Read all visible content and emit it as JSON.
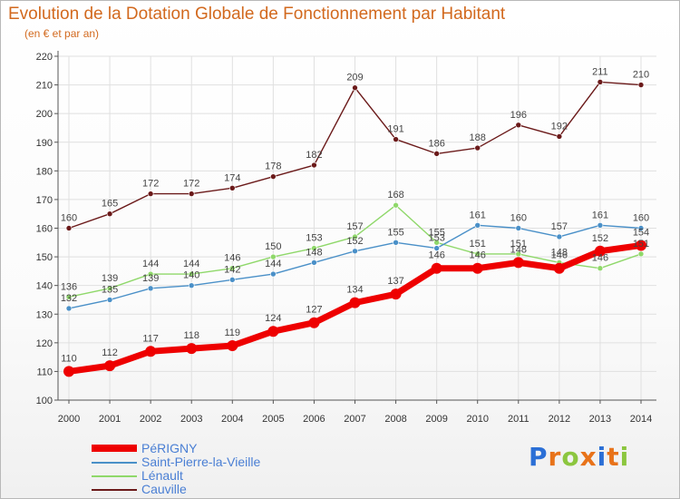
{
  "header": {
    "title": "Evolution de la Dotation Globale de Fonctionnement par Habitant",
    "subtitle": "(en € et par an)"
  },
  "logo": {
    "letters": [
      "P",
      "r",
      "o",
      "x",
      "i",
      "t",
      "i"
    ],
    "colors": [
      "#2b6fd6",
      "#e8731a",
      "#8cc63f",
      "#e8731a",
      "#2b6fd6",
      "#e8731a",
      "#8cc63f"
    ]
  },
  "chart_data": {
    "type": "line",
    "x": [
      "2000",
      "2001",
      "2002",
      "2003",
      "2004",
      "2005",
      "2006",
      "2007",
      "2008",
      "2009",
      "2010",
      "2011",
      "2012",
      "2013",
      "2014"
    ],
    "ylim": [
      100,
      220
    ],
    "yticks": [
      "100",
      "110",
      "120",
      "130",
      "140",
      "150",
      "160",
      "170",
      "180",
      "190",
      "200",
      "210",
      "220"
    ],
    "grid": true,
    "legend_position": "bottom-left",
    "series": [
      {
        "name": "PéRIGNY",
        "color": "#ee0000",
        "values": [
          110,
          112,
          117,
          118,
          119,
          124,
          127,
          134,
          137,
          146,
          146,
          148,
          146,
          152,
          154
        ]
      },
      {
        "name": "Saint-Pierre-la-Vieille",
        "color": "#4a90c8",
        "values": [
          132,
          135,
          139,
          140,
          142,
          144,
          148,
          152,
          155,
          153,
          161,
          160,
          157,
          161,
          160
        ]
      },
      {
        "name": "Lénault",
        "color": "#8fd86a",
        "values": [
          136,
          139,
          144,
          144,
          146,
          150,
          153,
          157,
          168,
          155,
          151,
          151,
          148,
          146,
          151
        ]
      },
      {
        "name": "Cauville",
        "color": "#6b1a1a",
        "values": [
          160,
          165,
          172,
          172,
          174,
          178,
          182,
          209,
          191,
          186,
          188,
          196,
          192,
          211,
          210
        ]
      }
    ]
  }
}
